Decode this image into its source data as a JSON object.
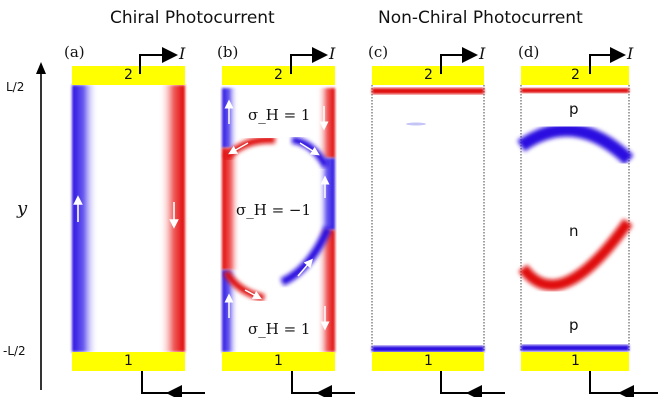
{
  "headings": {
    "chiral": "Chiral Photocurrent",
    "nonchiral": "Non-Chiral Photocurrent"
  },
  "panels": [
    {
      "label": "(a)",
      "current": "I",
      "contact_top": "2",
      "contact_bottom": "1"
    },
    {
      "label": "(b)",
      "current": "I",
      "contact_top": "2",
      "contact_bottom": "1"
    },
    {
      "label": "(c)",
      "current": "I",
      "contact_top": "2",
      "contact_bottom": "1"
    },
    {
      "label": "(d)",
      "current": "I",
      "contact_top": "2",
      "contact_bottom": "1"
    }
  ],
  "axis": {
    "var": "y",
    "top": "L/2",
    "bottom": "-L/2"
  },
  "panel_b": {
    "sigma_top": "σ_H = 1",
    "sigma_mid": "σ_H = −1",
    "sigma_bottom": "σ_H = 1"
  },
  "panel_d": {
    "region_top": "p",
    "region_mid": "n",
    "region_bottom": "p"
  },
  "colors": {
    "contact": "#ffff00",
    "positive": "#e60000",
    "negative": "#2200dd"
  }
}
